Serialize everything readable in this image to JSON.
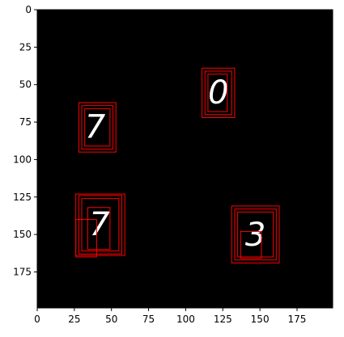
{
  "chart_data": {
    "type": "image",
    "title": "",
    "xlabel": "",
    "ylabel": "",
    "xlim": [
      0,
      199
    ],
    "ylim": [
      199,
      0
    ],
    "y_inverted": true,
    "xticks": [
      0,
      25,
      50,
      75,
      100,
      125,
      150,
      175
    ],
    "yticks": [
      0,
      25,
      50,
      75,
      100,
      125,
      150,
      175
    ],
    "background": "#000000",
    "box_color": "#ff0000",
    "digits": [
      {
        "text": "0",
        "x": 122,
        "y": 55
      },
      {
        "text": "7",
        "x": 39,
        "y": 78
      },
      {
        "text": "7",
        "x": 42,
        "y": 143
      },
      {
        "text": "3",
        "x": 147,
        "y": 150
      }
    ],
    "boxes": [
      [
        111,
        39,
        133,
        72
      ],
      [
        113,
        41,
        131,
        70
      ],
      [
        115,
        43,
        128,
        68
      ],
      [
        28,
        62,
        53,
        95
      ],
      [
        30,
        64,
        51,
        93
      ],
      [
        32,
        66,
        49,
        91
      ],
      [
        26,
        123,
        59,
        164
      ],
      [
        28,
        124,
        57,
        163
      ],
      [
        30,
        126,
        55,
        161
      ],
      [
        34,
        132,
        49,
        160
      ],
      [
        26,
        140,
        40,
        165
      ],
      [
        131,
        131,
        163,
        169
      ],
      [
        133,
        133,
        161,
        167
      ],
      [
        135,
        135,
        159,
        165
      ],
      [
        137,
        148,
        151,
        166
      ]
    ]
  }
}
